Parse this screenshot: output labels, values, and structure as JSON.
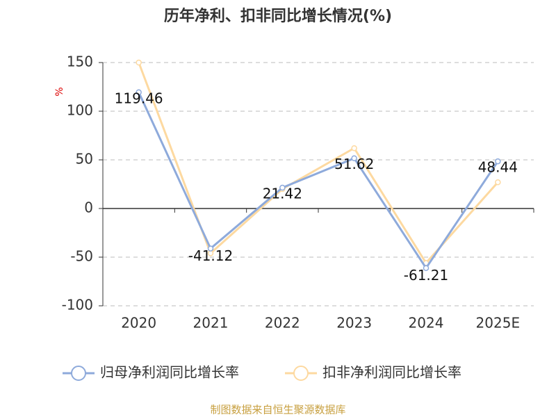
{
  "chart_data": {
    "type": "line",
    "title": "历年净利、扣非同比增长情况(%)",
    "y_label": "%",
    "categories": [
      "2020",
      "2021",
      "2022",
      "2023",
      "2024",
      "2025E"
    ],
    "series": [
      {
        "name": "归母净利润同比增长率",
        "color": "#8eaadb",
        "values": [
          119.46,
          -41.12,
          21.42,
          51.62,
          -61.21,
          48.44
        ],
        "labels": true
      },
      {
        "name": "扣非净利润同比增长率",
        "color": "#fdd9a0",
        "values": [
          150,
          -46,
          20,
          62,
          -56,
          27
        ],
        "labels": false
      }
    ],
    "ylim": [
      -100,
      150
    ],
    "yticks": [
      -100,
      -50,
      0,
      50,
      100,
      150
    ],
    "grid": true,
    "legend": "bottom",
    "source": "制图数据来自恒生聚源数据库"
  }
}
